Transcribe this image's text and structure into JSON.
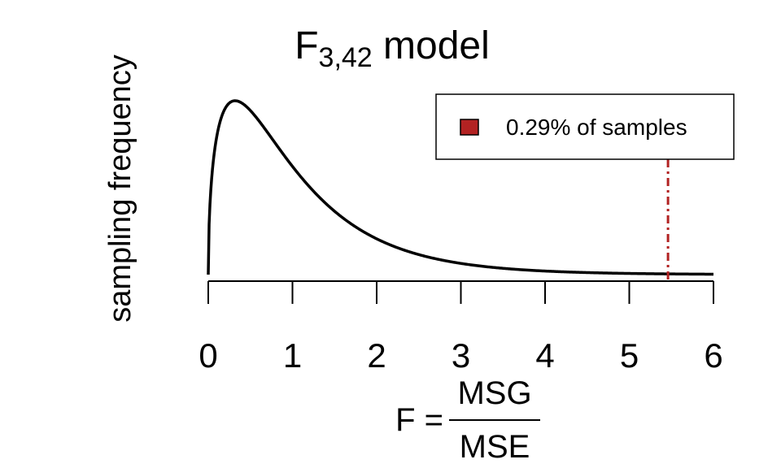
{
  "chart_data": {
    "type": "area",
    "title_main": "F",
    "title_subscript": "3,42",
    "title_rest": " model",
    "ylabel": "sampling frequency",
    "xlabel_prefix": "F =",
    "xlabel_numerator": "MSG",
    "xlabel_denominator": "MSE",
    "df1": 3,
    "df2": 42,
    "xlim": [
      0,
      6
    ],
    "x_ticks": [
      0,
      1,
      2,
      3,
      4,
      5,
      6
    ],
    "x_tick_labels": [
      "0",
      "1",
      "2",
      "3",
      "4",
      "5",
      "6"
    ],
    "observed_f": 5.46,
    "shaded_region": [
      5.46,
      6
    ],
    "legend": {
      "placement": "top-right",
      "label": "0.29% of samples",
      "color": "#b22222"
    },
    "colors": {
      "curve": "#000000",
      "shade": "#b22222",
      "cutoff_line": "#b22222"
    }
  }
}
